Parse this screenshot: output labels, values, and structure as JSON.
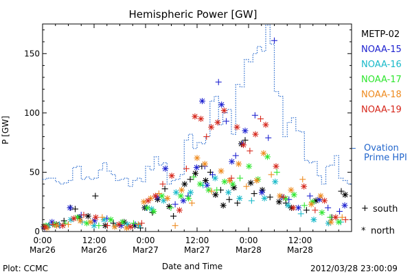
{
  "chart_data": {
    "type": "scatter",
    "title": "Hemispheric Power [GW]",
    "xlabel": "Date and Time",
    "ylabel": "P [GW]",
    "ylim": [
      0,
      175
    ],
    "y_ticks": [
      0,
      50,
      100,
      150
    ],
    "x_range_hours": [
      0,
      72.0
    ],
    "x_ticks": [
      {
        "h": 0,
        "time": "0:00",
        "date": "Mar26"
      },
      {
        "h": 12,
        "time": "12:00",
        "date": "Mar26"
      },
      {
        "h": 24,
        "time": "0:00",
        "date": "Mar27"
      },
      {
        "h": 36,
        "time": "12:00",
        "date": "Mar27"
      },
      {
        "h": 48,
        "time": "0:00",
        "date": "Mar28"
      },
      {
        "h": 60,
        "time": "12:00",
        "date": "Mar28"
      }
    ],
    "legend_placement": "right",
    "series": [
      {
        "name": "METP-02",
        "color": "#000000",
        "points": [
          [
            0.3,
            4,
            "n"
          ],
          [
            1.5,
            5,
            "s"
          ],
          [
            3.2,
            6,
            "n"
          ],
          [
            5.0,
            9,
            "s"
          ],
          [
            6.5,
            20,
            "s"
          ],
          [
            7.6,
            19,
            "s"
          ],
          [
            8.6,
            12,
            "n"
          ],
          [
            10.6,
            13,
            "n"
          ],
          [
            12.3,
            30,
            "s"
          ],
          [
            14.6,
            5,
            "n"
          ],
          [
            16.5,
            7,
            "s"
          ],
          [
            19.0,
            8,
            "n"
          ],
          [
            21.5,
            5,
            "n"
          ],
          [
            22.8,
            3,
            "s"
          ],
          [
            23.8,
            20,
            "n"
          ],
          [
            25.6,
            16,
            "s"
          ],
          [
            26.8,
            27,
            "n"
          ],
          [
            28.5,
            36,
            "s"
          ],
          [
            29.5,
            21,
            "n"
          ],
          [
            30.5,
            13,
            "s"
          ],
          [
            33.1,
            40,
            "n"
          ],
          [
            34.4,
            44,
            "s"
          ],
          [
            35.6,
            49,
            "n"
          ],
          [
            37.1,
            55,
            "s"
          ],
          [
            38.0,
            43,
            "n"
          ],
          [
            39.1,
            50,
            "s"
          ],
          [
            40.3,
            31,
            "n"
          ],
          [
            41.5,
            35,
            "s"
          ],
          [
            42.1,
            22,
            "n"
          ],
          [
            43.5,
            27,
            "s"
          ],
          [
            44.6,
            37,
            "n"
          ],
          [
            45.4,
            24,
            "s"
          ],
          [
            46.3,
            74,
            "n"
          ],
          [
            47.2,
            77,
            "s"
          ],
          [
            48.5,
            41,
            "n"
          ],
          [
            49.3,
            32,
            "s"
          ],
          [
            51.2,
            35,
            "n"
          ],
          [
            53.0,
            29,
            "s"
          ],
          [
            55.1,
            25,
            "n"
          ],
          [
            56.7,
            24,
            "s"
          ],
          [
            58.0,
            20,
            "n"
          ],
          [
            61.5,
            18,
            "s"
          ],
          [
            63.7,
            26,
            "n"
          ],
          [
            67.4,
            12,
            "s"
          ],
          [
            69.6,
            34,
            "s"
          ],
          [
            70.5,
            31,
            "n"
          ]
        ]
      },
      {
        "name": "NOAA-15",
        "color": "#1e22d0",
        "points": [
          [
            0.5,
            3,
            "s"
          ],
          [
            2.2,
            8,
            "n"
          ],
          [
            4.0,
            5,
            "s"
          ],
          [
            6.4,
            20,
            "n"
          ],
          [
            9.0,
            14,
            "s"
          ],
          [
            12.1,
            9,
            "n"
          ],
          [
            15.0,
            11,
            "s"
          ],
          [
            18.3,
            5,
            "n"
          ],
          [
            21.6,
            6,
            "s"
          ],
          [
            24.2,
            20,
            "s"
          ],
          [
            26.7,
            29,
            "n"
          ],
          [
            28.6,
            53,
            "n"
          ],
          [
            30.9,
            23,
            "s"
          ],
          [
            32.8,
            26,
            "n"
          ],
          [
            33.9,
            30,
            "s"
          ],
          [
            35.9,
            54,
            "n"
          ],
          [
            37.2,
            110,
            "n"
          ],
          [
            37.8,
            55,
            "s"
          ],
          [
            38.3,
            39,
            "n"
          ],
          [
            39.6,
            48,
            "s"
          ],
          [
            41.0,
            126,
            "s"
          ],
          [
            41.7,
            107,
            "n"
          ],
          [
            42.8,
            93,
            "s"
          ],
          [
            44.1,
            59,
            "n"
          ],
          [
            45.0,
            64,
            "s"
          ],
          [
            46.6,
            74,
            "s"
          ],
          [
            47.2,
            85,
            "n"
          ],
          [
            49.5,
            98,
            "s"
          ],
          [
            51.1,
            33,
            "n"
          ],
          [
            52.6,
            79,
            "s"
          ],
          [
            54.0,
            161,
            "s"
          ],
          [
            55.8,
            29,
            "n"
          ],
          [
            57.4,
            27,
            "s"
          ],
          [
            59.6,
            20,
            "n"
          ],
          [
            62.3,
            30,
            "s"
          ],
          [
            64.5,
            27,
            "n"
          ],
          [
            66.5,
            20,
            "s"
          ],
          [
            69.2,
            17,
            "s"
          ],
          [
            70.4,
            22,
            "n"
          ]
        ]
      },
      {
        "name": "NOAA-16",
        "color": "#17b9c9",
        "points": [
          [
            1.4,
            5,
            "n"
          ],
          [
            3.9,
            6,
            "s"
          ],
          [
            6.6,
            10,
            "n"
          ],
          [
            9.2,
            8,
            "s"
          ],
          [
            12.0,
            5,
            "n"
          ],
          [
            14.3,
            10,
            "n"
          ],
          [
            17.0,
            5,
            "s"
          ],
          [
            19.8,
            6,
            "n"
          ],
          [
            22.5,
            5,
            "n"
          ],
          [
            25.4,
            19,
            "n"
          ],
          [
            28.2,
            26,
            "n"
          ],
          [
            31.1,
            33,
            "n"
          ],
          [
            34.5,
            33,
            "n"
          ],
          [
            37.4,
            39,
            "s"
          ],
          [
            40.2,
            45,
            "n"
          ],
          [
            43.3,
            33,
            "n"
          ],
          [
            45.9,
            28,
            "n"
          ],
          [
            48.7,
            26,
            "s"
          ],
          [
            51.7,
            28,
            "n"
          ],
          [
            54.2,
            42,
            "n"
          ],
          [
            57.2,
            22,
            "n"
          ],
          [
            60.2,
            15,
            "s"
          ],
          [
            63.2,
            10,
            "n"
          ],
          [
            66.6,
            7,
            "n"
          ],
          [
            69.5,
            8,
            "s"
          ]
        ]
      },
      {
        "name": "NOAA-17",
        "color": "#2ee62e",
        "points": [
          [
            0.8,
            5,
            "n"
          ],
          [
            2.8,
            6,
            "n"
          ],
          [
            5.3,
            7,
            "s"
          ],
          [
            8.1,
            12,
            "n"
          ],
          [
            10.3,
            7,
            "n"
          ],
          [
            13.1,
            5,
            "s"
          ],
          [
            15.9,
            10,
            "n"
          ],
          [
            18.6,
            8,
            "n"
          ],
          [
            21.2,
            7,
            "s"
          ],
          [
            24.4,
            20,
            "n"
          ],
          [
            25.9,
            17,
            "n"
          ],
          [
            27.8,
            30,
            "n"
          ],
          [
            29.9,
            20,
            "s"
          ],
          [
            32.2,
            30,
            "n"
          ],
          [
            34.0,
            28,
            "n"
          ],
          [
            35.2,
            46,
            "s"
          ],
          [
            36.7,
            40,
            "n"
          ],
          [
            38.7,
            35,
            "n"
          ],
          [
            40.6,
            35,
            "s"
          ],
          [
            42.4,
            42,
            "n"
          ],
          [
            44.3,
            40,
            "n"
          ],
          [
            46.0,
            45,
            "s"
          ],
          [
            48.1,
            55,
            "n"
          ],
          [
            50.2,
            44,
            "n"
          ],
          [
            52.4,
            63,
            "n"
          ],
          [
            54.6,
            50,
            "s"
          ],
          [
            56.6,
            28,
            "n"
          ],
          [
            58.6,
            31,
            "n"
          ],
          [
            61.0,
            22,
            "s"
          ],
          [
            62.9,
            25,
            "n"
          ],
          [
            65.1,
            16,
            "n"
          ],
          [
            67.0,
            12,
            "s"
          ],
          [
            69.0,
            8,
            "n"
          ]
        ]
      },
      {
        "name": "NOAA-18",
        "color": "#ee8a1e",
        "points": [
          [
            1.0,
            3,
            "n"
          ],
          [
            3.3,
            5,
            "n"
          ],
          [
            6.0,
            6,
            "s"
          ],
          [
            8.8,
            9,
            "n"
          ],
          [
            11.2,
            8,
            "n"
          ],
          [
            13.9,
            12,
            "s"
          ],
          [
            16.8,
            4,
            "n"
          ],
          [
            19.6,
            3,
            "n"
          ],
          [
            22.3,
            6,
            "s"
          ],
          [
            23.6,
            25,
            "n"
          ],
          [
            25.2,
            28,
            "n"
          ],
          [
            27.1,
            32,
            "s"
          ],
          [
            29.1,
            28,
            "n"
          ],
          [
            30.9,
            5,
            "s"
          ],
          [
            32.4,
            35,
            "n"
          ],
          [
            34.8,
            24,
            "s"
          ],
          [
            36.0,
            62,
            "n"
          ],
          [
            37.8,
            57,
            "n"
          ],
          [
            39.4,
            34,
            "s"
          ],
          [
            41.6,
            51,
            "n"
          ],
          [
            43.6,
            43,
            "n"
          ],
          [
            45.7,
            57,
            "n"
          ],
          [
            47.5,
            38,
            "s"
          ],
          [
            49.9,
            43,
            "n"
          ],
          [
            51.5,
            66,
            "n"
          ],
          [
            53.3,
            48,
            "s"
          ],
          [
            55.3,
            30,
            "n"
          ],
          [
            57.9,
            35,
            "n"
          ],
          [
            60.6,
            44,
            "s"
          ],
          [
            62.6,
            23,
            "n"
          ],
          [
            64.8,
            30,
            "n"
          ],
          [
            67.2,
            8,
            "n"
          ],
          [
            69.8,
            12,
            "s"
          ]
        ]
      },
      {
        "name": "NOAA-19",
        "color": "#d6261a",
        "points": [
          [
            0.6,
            4,
            "n"
          ],
          [
            2.4,
            6,
            "s"
          ],
          [
            4.7,
            5,
            "n"
          ],
          [
            7.3,
            11,
            "n"
          ],
          [
            9.6,
            14,
            "s"
          ],
          [
            12.4,
            12,
            "n"
          ],
          [
            15.1,
            5,
            "s"
          ],
          [
            17.8,
            6,
            "n"
          ],
          [
            20.5,
            4,
            "n"
          ],
          [
            23.1,
            7,
            "s"
          ],
          [
            24.6,
            26,
            "n"
          ],
          [
            26.3,
            30,
            "n"
          ],
          [
            28.0,
            40,
            "s"
          ],
          [
            30.1,
            47,
            "n"
          ],
          [
            31.9,
            18,
            "n"
          ],
          [
            33.5,
            53,
            "s"
          ],
          [
            35.5,
            97,
            "n"
          ],
          [
            36.9,
            95,
            "n"
          ],
          [
            38.2,
            80,
            "s"
          ],
          [
            39.3,
            88,
            "n"
          ],
          [
            40.8,
            92,
            "n"
          ],
          [
            42.3,
            102,
            "n"
          ],
          [
            44.0,
            45,
            "s"
          ],
          [
            45.3,
            88,
            "n"
          ],
          [
            46.8,
            73,
            "n"
          ],
          [
            48.3,
            68,
            "s"
          ],
          [
            49.6,
            82,
            "n"
          ],
          [
            50.8,
            95,
            "s"
          ],
          [
            52.0,
            90,
            "n"
          ],
          [
            54.4,
            55,
            "n"
          ],
          [
            56.2,
            29,
            "s"
          ],
          [
            58.4,
            20,
            "n"
          ],
          [
            60.9,
            38,
            "n"
          ],
          [
            63.5,
            18,
            "s"
          ],
          [
            65.7,
            26,
            "n"
          ],
          [
            68.3,
            12,
            "n"
          ],
          [
            70.6,
            10,
            "s"
          ]
        ]
      }
    ],
    "ovation": {
      "name": "Ovation Prime HPI",
      "color": "#2266cc",
      "step_x": 1.0,
      "values": [
        44,
        45,
        45,
        42,
        40,
        41,
        43,
        54,
        55,
        44,
        46,
        44,
        45,
        52,
        58,
        51,
        48,
        43,
        44,
        45,
        38,
        43,
        45,
        42,
        55,
        52,
        63,
        56,
        58,
        40,
        43,
        44,
        48,
        77,
        82,
        70,
        75,
        74,
        80,
        110,
        114,
        90,
        100,
        103,
        82,
        124,
        122,
        145,
        143,
        150,
        156,
        152,
        174,
        158,
        118,
        114,
        80,
        92,
        96,
        85,
        84,
        60,
        58,
        59,
        47,
        40,
        55,
        56,
        64,
        45,
        43,
        40
      ]
    },
    "legend_extra": {
      "ovation_label": "Ovation Prime HPI",
      "south_label": "south",
      "north_label": "north"
    }
  },
  "footer": {
    "left": "Plot: CCMC",
    "right": "2012/03/28 23:00:09"
  }
}
